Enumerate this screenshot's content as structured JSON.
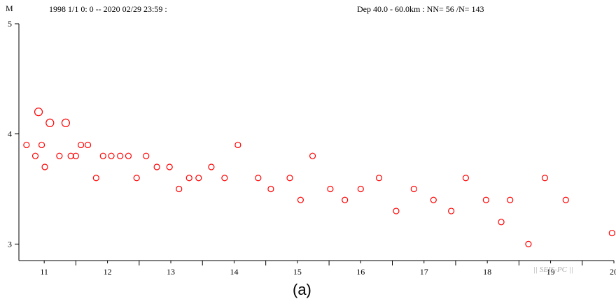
{
  "header": {
    "time_range": "1998 1/1 0: 0 -- 2020 02/29 23:59  :",
    "depth_info": "Dep 40.0 - 60.0km :  NN= 56 /N= 143"
  },
  "watermark": "|| SEIS-PC ||",
  "caption": "(a)",
  "colors": {
    "marker": "#ff0000",
    "axis": "#000000",
    "watermark": "#aaaaaa"
  },
  "chart_data": {
    "type": "scatter",
    "title": "",
    "xlabel": "",
    "ylabel": "M",
    "xlim": [
      10.6,
      20.0
    ],
    "ylim": [
      2.85,
      5.0
    ],
    "x_ticks": [
      11,
      12,
      13,
      14,
      15,
      16,
      17,
      18,
      19,
      20
    ],
    "y_ticks": [
      3,
      4,
      5
    ],
    "marker": "circle-open",
    "points": [
      {
        "x": 10.72,
        "y": 3.9,
        "size": "small"
      },
      {
        "x": 10.86,
        "y": 3.8,
        "size": "small"
      },
      {
        "x": 10.91,
        "y": 4.2,
        "size": "medium"
      },
      {
        "x": 10.96,
        "y": 3.9,
        "size": "small"
      },
      {
        "x": 11.01,
        "y": 3.7,
        "size": "small"
      },
      {
        "x": 11.09,
        "y": 4.1,
        "size": "medium"
      },
      {
        "x": 11.24,
        "y": 3.8,
        "size": "small"
      },
      {
        "x": 11.34,
        "y": 4.1,
        "size": "medium"
      },
      {
        "x": 11.42,
        "y": 3.8,
        "size": "small"
      },
      {
        "x": 11.5,
        "y": 3.8,
        "size": "small"
      },
      {
        "x": 11.58,
        "y": 3.9,
        "size": "small"
      },
      {
        "x": 11.69,
        "y": 3.9,
        "size": "small"
      },
      {
        "x": 11.82,
        "y": 3.6,
        "size": "small"
      },
      {
        "x": 11.93,
        "y": 3.8,
        "size": "small"
      },
      {
        "x": 12.06,
        "y": 3.8,
        "size": "small"
      },
      {
        "x": 12.2,
        "y": 3.8,
        "size": "small"
      },
      {
        "x": 12.33,
        "y": 3.8,
        "size": "small"
      },
      {
        "x": 12.46,
        "y": 3.6,
        "size": "small"
      },
      {
        "x": 12.61,
        "y": 3.8,
        "size": "small"
      },
      {
        "x": 12.78,
        "y": 3.7,
        "size": "small"
      },
      {
        "x": 12.98,
        "y": 3.7,
        "size": "small"
      },
      {
        "x": 13.13,
        "y": 3.5,
        "size": "small"
      },
      {
        "x": 13.29,
        "y": 3.6,
        "size": "small"
      },
      {
        "x": 13.44,
        "y": 3.6,
        "size": "small"
      },
      {
        "x": 13.64,
        "y": 3.7,
        "size": "small"
      },
      {
        "x": 13.85,
        "y": 3.6,
        "size": "small"
      },
      {
        "x": 14.06,
        "y": 3.9,
        "size": "small"
      },
      {
        "x": 14.38,
        "y": 3.6,
        "size": "small"
      },
      {
        "x": 14.58,
        "y": 3.5,
        "size": "small"
      },
      {
        "x": 14.88,
        "y": 3.6,
        "size": "small"
      },
      {
        "x": 15.05,
        "y": 3.4,
        "size": "small"
      },
      {
        "x": 15.24,
        "y": 3.8,
        "size": "small"
      },
      {
        "x": 15.52,
        "y": 3.5,
        "size": "small"
      },
      {
        "x": 15.75,
        "y": 3.4,
        "size": "small"
      },
      {
        "x": 16.0,
        "y": 3.5,
        "size": "small"
      },
      {
        "x": 16.29,
        "y": 3.6,
        "size": "small"
      },
      {
        "x": 16.56,
        "y": 3.3,
        "size": "small"
      },
      {
        "x": 16.84,
        "y": 3.5,
        "size": "small"
      },
      {
        "x": 17.15,
        "y": 3.4,
        "size": "small"
      },
      {
        "x": 17.43,
        "y": 3.3,
        "size": "small"
      },
      {
        "x": 17.66,
        "y": 3.6,
        "size": "small"
      },
      {
        "x": 17.98,
        "y": 3.4,
        "size": "small"
      },
      {
        "x": 18.22,
        "y": 3.2,
        "size": "small"
      },
      {
        "x": 18.36,
        "y": 3.4,
        "size": "small"
      },
      {
        "x": 18.65,
        "y": 3.0,
        "size": "small"
      },
      {
        "x": 18.91,
        "y": 3.6,
        "size": "small"
      },
      {
        "x": 19.24,
        "y": 3.4,
        "size": "small"
      },
      {
        "x": 19.97,
        "y": 3.1,
        "size": "small"
      }
    ]
  }
}
